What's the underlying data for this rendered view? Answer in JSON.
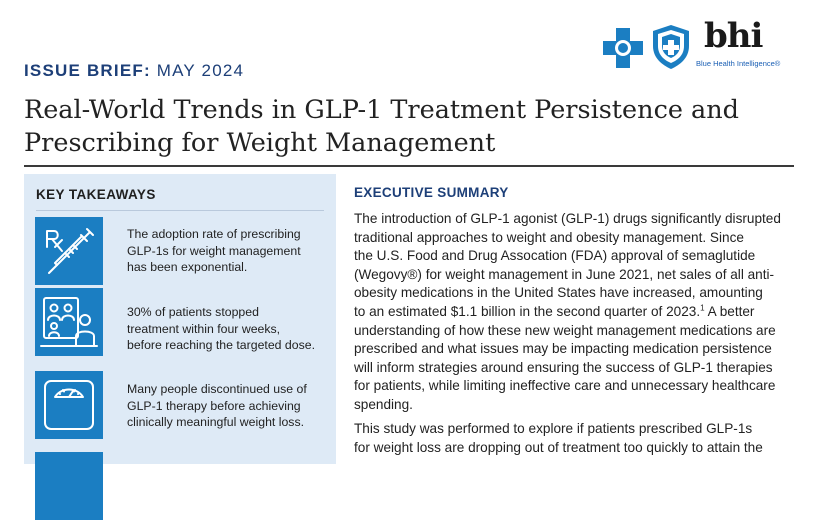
{
  "header": {
    "issue_label": "ISSUE BRIEF:",
    "issue_date": "MAY 2024",
    "title_line1": "Real-World Trends in GLP-1 Treatment Persistence and",
    "title_line2": "Prescribing for Weight Management"
  },
  "logos": {
    "bhi_text": "bhi",
    "bhi_sub": "Blue Health Intelligence®",
    "brand_blue": "#1b7ec2"
  },
  "key_takeaways": {
    "heading": "KEY TAKEAWAYS",
    "items": [
      {
        "icon": "prescription-syringe-icon",
        "lines": [
          "The adoption rate of prescribing",
          "GLP-1s for weight management",
          "has been exponential."
        ]
      },
      {
        "icon": "people-consultation-icon",
        "lines": [
          "30% of patients stopped",
          "treatment within four weeks,",
          "before reaching the targeted dose."
        ]
      },
      {
        "icon": "scale-icon",
        "lines": [
          "Many people discontinued use of",
          "GLP-1 therapy before achieving",
          "clinically meaningful weight loss."
        ]
      }
    ]
  },
  "executive_summary": {
    "heading": "EXECUTIVE SUMMARY",
    "p1_lines": [
      "The introduction of GLP-1 agonist (GLP-1) drugs significantly disrupted",
      "traditional approaches to weight and obesity management. Since",
      "the U.S. Food and Drug Assocation (FDA) approval of semaglutide",
      "(Wegovy®) for weight management in June 2021, net sales of all anti-",
      "obesity medications in the United States have increased, amounting",
      "to an estimated $1.1 billion in the second quarter of 2023.",
      "understanding of how these new weight management medications are",
      "prescribed and what issues may be impacting medication persistence",
      "will inform strategies around ensuring the success of GLP-1 therapies",
      "for patients, while limiting ineffective care and unnecessary healthcare",
      "spending."
    ],
    "footnote_ref": "1",
    "p1_line6_tail": " A better",
    "p2_lines": [
      "This study was performed to explore if patients prescribed GLP-1s",
      "for weight loss are dropping out of treatment too quickly to attain the"
    ]
  }
}
